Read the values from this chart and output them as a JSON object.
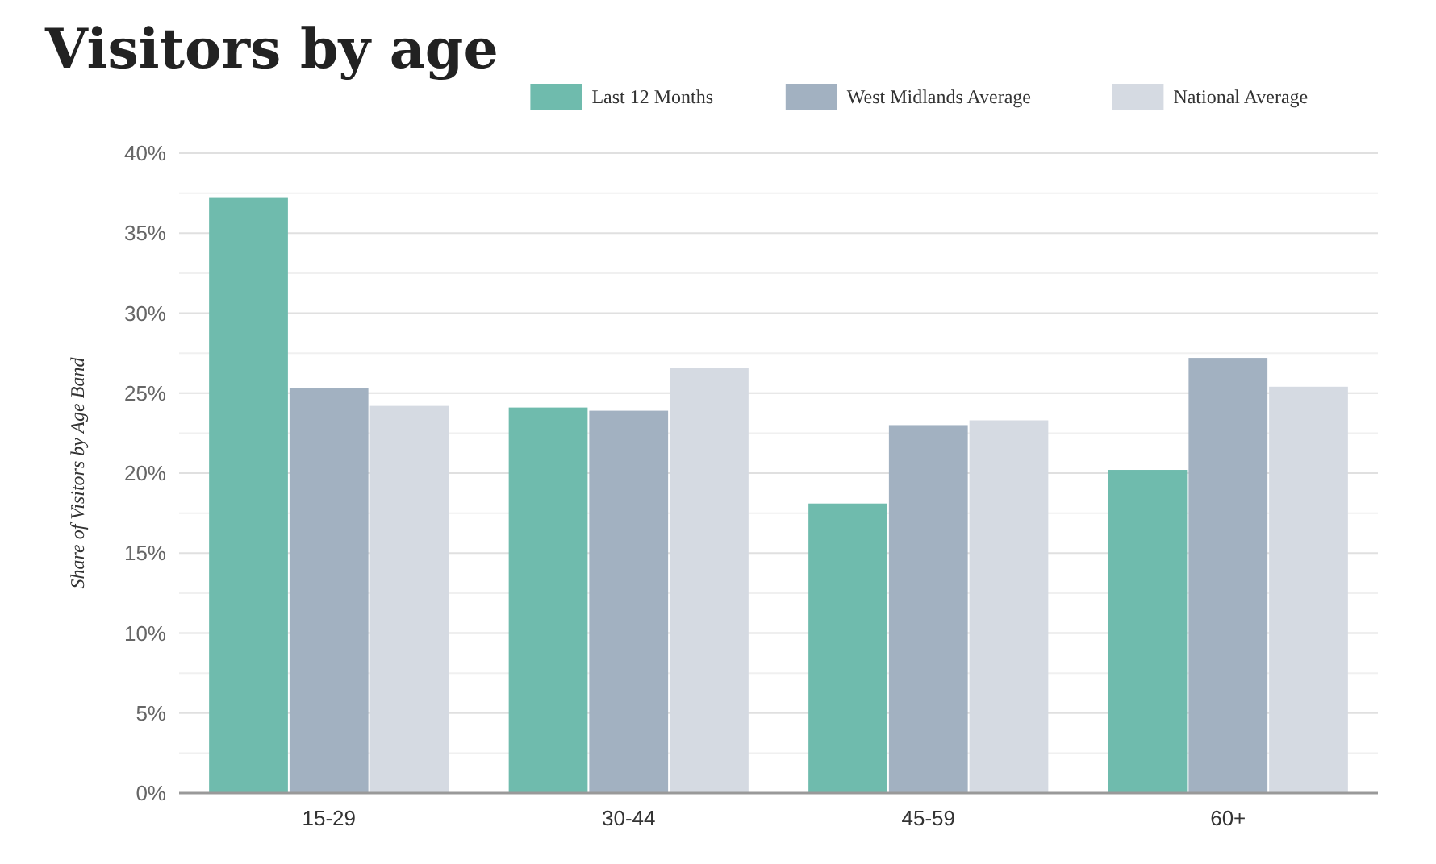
{
  "chart_data": {
    "type": "bar",
    "title": "Visitors by age",
    "ylabel": "Share of Visitors by Age Band",
    "categories": [
      "15-29",
      "30-44",
      "45-59",
      "60+"
    ],
    "series": [
      {
        "name": "Last 12 Months",
        "color": "#6fbbad",
        "values": [
          37.2,
          24.1,
          18.1,
          20.2
        ]
      },
      {
        "name": "West Midlands Average",
        "color": "#a2b1c1",
        "values": [
          25.3,
          23.9,
          23.0,
          27.2
        ]
      },
      {
        "name": "National Average",
        "color": "#d5dae2",
        "values": [
          24.2,
          26.6,
          23.3,
          25.4
        ]
      }
    ],
    "ylim": [
      0,
      40
    ],
    "yticks": [
      {
        "value": 0,
        "label": "0%"
      },
      {
        "value": 2.5,
        "label": null
      },
      {
        "value": 5,
        "label": "5%"
      },
      {
        "value": 7.5,
        "label": null
      },
      {
        "value": 10,
        "label": "10%"
      },
      {
        "value": 12.5,
        "label": null
      },
      {
        "value": 15,
        "label": "15%"
      },
      {
        "value": 17.5,
        "label": null
      },
      {
        "value": 20,
        "label": "20%"
      },
      {
        "value": 22.5,
        "label": null
      },
      {
        "value": 25,
        "label": "25%"
      },
      {
        "value": 27.5,
        "label": null
      },
      {
        "value": 30,
        "label": "30%"
      },
      {
        "value": 32.5,
        "label": null
      },
      {
        "value": 35,
        "label": "35%"
      },
      {
        "value": 37.5,
        "label": null
      },
      {
        "value": 40,
        "label": "40%"
      }
    ],
    "grid": true,
    "legend": "top"
  }
}
